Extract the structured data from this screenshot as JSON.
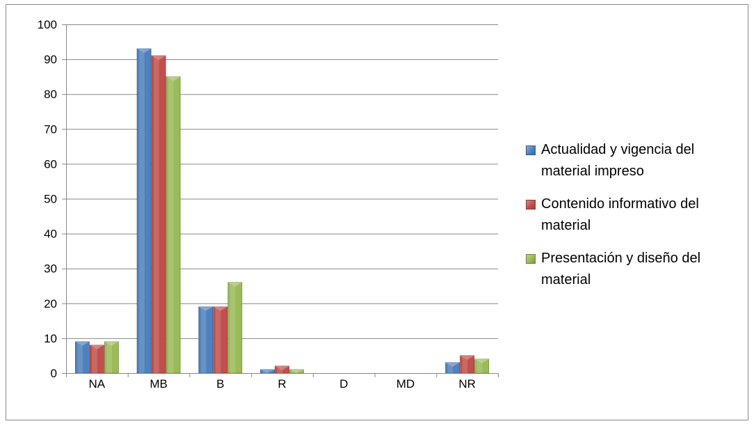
{
  "chart_data": {
    "type": "bar",
    "categories": [
      "NA",
      "MB",
      "B",
      "R",
      "D",
      "MD",
      "NR"
    ],
    "series": [
      {
        "name": "Actualidad y vigencia del material impreso",
        "values": [
          9,
          93,
          19,
          1,
          0,
          0,
          3
        ],
        "color": "#4f81bd"
      },
      {
        "name": "Contenido informativo del material",
        "values": [
          8,
          91,
          19,
          2,
          0,
          0,
          5
        ],
        "color": "#c0504d"
      },
      {
        "name": "Presentación y diseño del material",
        "values": [
          9,
          85,
          26,
          1,
          0,
          0,
          4
        ],
        "color": "#9bbb59"
      }
    ],
    "y_ticks": [
      "0",
      "10",
      "20",
      "30",
      "40",
      "50",
      "60",
      "70",
      "80",
      "90",
      "100"
    ],
    "ylim": [
      0,
      100
    ],
    "title": "",
    "xlabel": "",
    "ylabel": "",
    "grid": true,
    "legend_position": "right"
  }
}
